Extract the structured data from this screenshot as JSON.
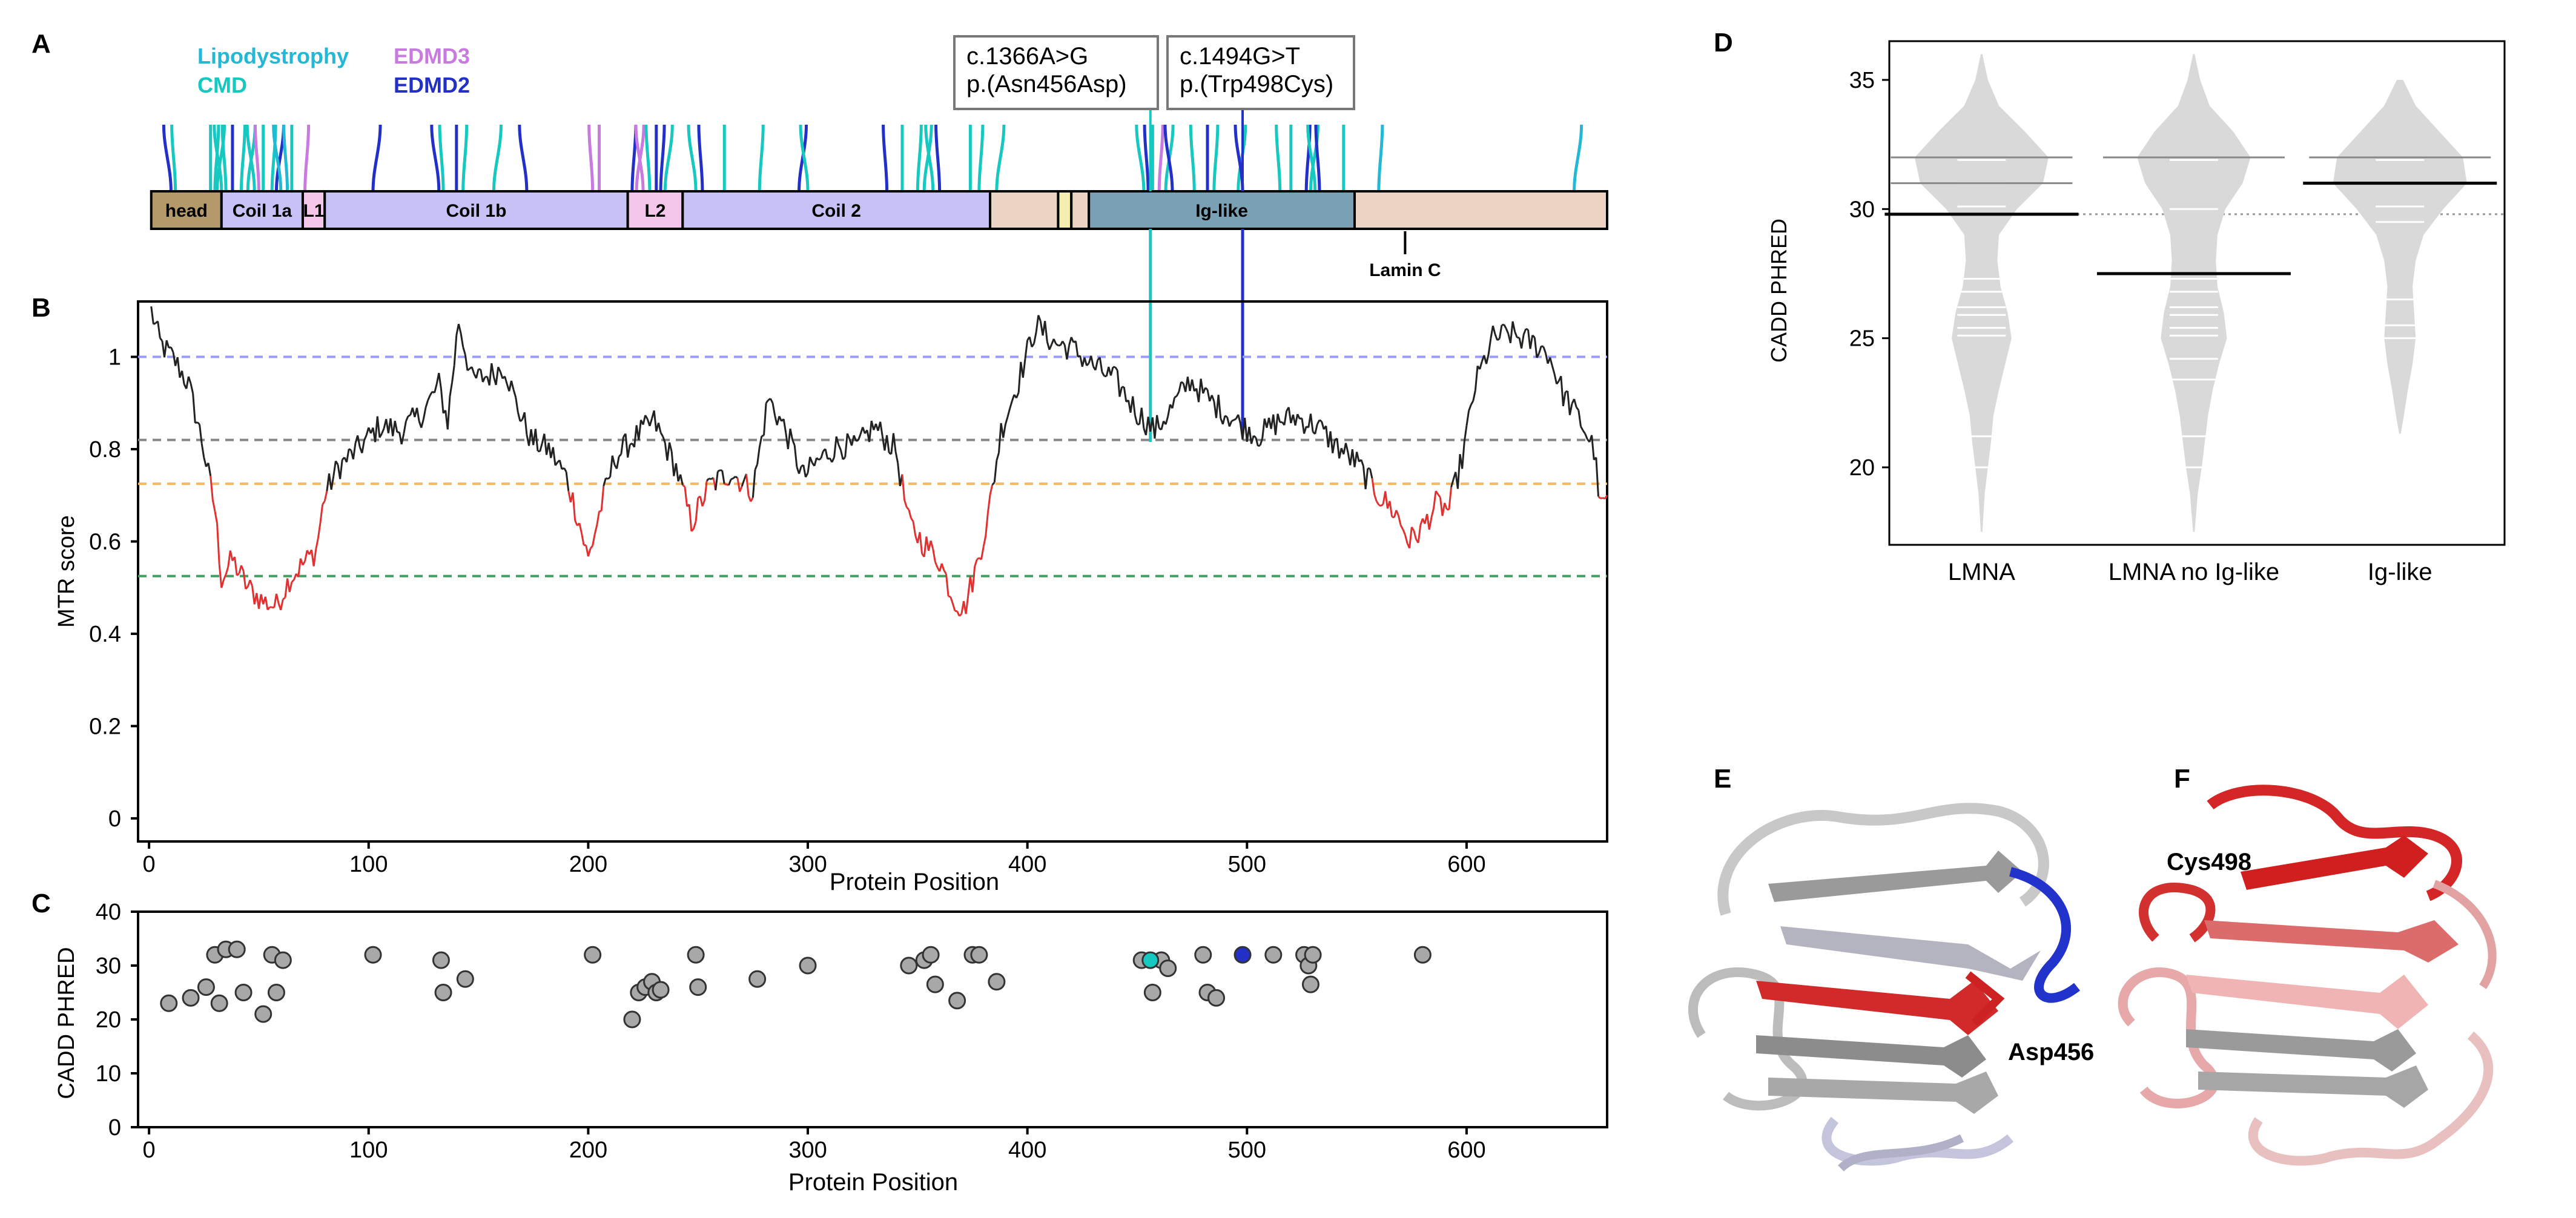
{
  "colors": {
    "lipodystrophy": "#22b8d6",
    "cmd": "#17c8c0",
    "edmd3": "#c87ae0",
    "edmd2": "#2230c8",
    "mtr_line": "#222222",
    "mtr_low": "#e03030",
    "dashed_blue": "#9a9aff",
    "dashed_gray": "#888888",
    "dashed_orange": "#f7b860",
    "dashed_green": "#40a060",
    "scatter_gray": "#a8a8a8",
    "violin": "#d9d9d9",
    "domain_head": "#b49a6a",
    "domain_coil": "#c7c2f5",
    "domain_linker": "#f3c6ea",
    "domain_tail": "#ebd4c4",
    "domain_ig": "#7aa0b6",
    "domain_small": "#f3edb0"
  },
  "panel_labels": {
    "a": "A",
    "b": "B",
    "c": "C",
    "d": "D",
    "e": "E",
    "f": "F"
  },
  "legend": {
    "lipodystrophy": "Lipodystrophy",
    "cmd": "CMD",
    "edmd3": "EDMD3",
    "edmd2": "EDMD2"
  },
  "annotations": {
    "var1_line1": "c.1366A>G",
    "var1_line2": "p.(Asn456Asp)",
    "var2_line1": "c.1494G>T",
    "var2_line2": "p.(Trp498Cys)"
  },
  "domains": [
    {
      "label": "head",
      "start": 1,
      "end": 33,
      "kind": "head"
    },
    {
      "label": "Coil 1a",
      "start": 33,
      "end": 70,
      "kind": "coil"
    },
    {
      "label": "L1",
      "start": 70,
      "end": 80,
      "kind": "linker"
    },
    {
      "label": "Coil 1b",
      "start": 80,
      "end": 218,
      "kind": "coil"
    },
    {
      "label": "L2",
      "start": 218,
      "end": 243,
      "kind": "linker"
    },
    {
      "label": "Coil 2",
      "start": 243,
      "end": 383,
      "kind": "coil"
    },
    {
      "label": "",
      "start": 383,
      "end": 414,
      "kind": "tail"
    },
    {
      "label": "",
      "start": 414,
      "end": 420,
      "kind": "small"
    },
    {
      "label": "",
      "start": 420,
      "end": 428,
      "kind": "tail"
    },
    {
      "label": "Ig-like",
      "start": 428,
      "end": 549,
      "kind": "ig"
    },
    {
      "label": "",
      "start": 549,
      "end": 664,
      "kind": "tail"
    }
  ],
  "lamin_c_label": "Lamin C",
  "lamin_c_position": 572,
  "variant_ticks": [
    {
      "pos": 10,
      "d": "edmd2"
    },
    {
      "pos": 12,
      "d": "cmd"
    },
    {
      "pos": 28,
      "d": "cmd"
    },
    {
      "pos": 30,
      "d": "cmd"
    },
    {
      "pos": 31,
      "d": "cmd"
    },
    {
      "pos": 33,
      "d": "cmd"
    },
    {
      "pos": 35,
      "d": "cmd"
    },
    {
      "pos": 38,
      "d": "edmd2"
    },
    {
      "pos": 42,
      "d": "cmd"
    },
    {
      "pos": 45,
      "d": "cmd"
    },
    {
      "pos": 48,
      "d": "cmd"
    },
    {
      "pos": 50,
      "d": "edmd3"
    },
    {
      "pos": 52,
      "d": "cmd"
    },
    {
      "pos": 56,
      "d": "cmd"
    },
    {
      "pos": 58,
      "d": "edmd2"
    },
    {
      "pos": 60,
      "d": "lipodystrophy"
    },
    {
      "pos": 63,
      "d": "lipodystrophy"
    },
    {
      "pos": 65,
      "d": "cmd"
    },
    {
      "pos": 71,
      "d": "edmd3"
    },
    {
      "pos": 102,
      "d": "edmd2"
    },
    {
      "pos": 132,
      "d": "edmd2"
    },
    {
      "pos": 134,
      "d": "cmd"
    },
    {
      "pos": 140,
      "d": "edmd2"
    },
    {
      "pos": 143,
      "d": "cmd"
    },
    {
      "pos": 157,
      "d": "cmd"
    },
    {
      "pos": 172,
      "d": "edmd2"
    },
    {
      "pos": 202,
      "d": "edmd3"
    },
    {
      "pos": 205,
      "d": "edmd3"
    },
    {
      "pos": 220,
      "d": "edmd2"
    },
    {
      "pos": 222,
      "d": "edmd3"
    },
    {
      "pos": 225,
      "d": "edmd3"
    },
    {
      "pos": 228,
      "d": "cmd"
    },
    {
      "pos": 231,
      "d": "edmd2"
    },
    {
      "pos": 233,
      "d": "edmd2"
    },
    {
      "pos": 235,
      "d": "cmd"
    },
    {
      "pos": 249,
      "d": "cmd"
    },
    {
      "pos": 252,
      "d": "edmd2"
    },
    {
      "pos": 262,
      "d": "cmd"
    },
    {
      "pos": 278,
      "d": "cmd"
    },
    {
      "pos": 296,
      "d": "edmd2"
    },
    {
      "pos": 300,
      "d": "cmd"
    },
    {
      "pos": 336,
      "d": "edmd2"
    },
    {
      "pos": 343,
      "d": "cmd"
    },
    {
      "pos": 350,
      "d": "cmd"
    },
    {
      "pos": 353,
      "d": "cmd"
    },
    {
      "pos": 357,
      "d": "cmd"
    },
    {
      "pos": 360,
      "d": "edmd2"
    },
    {
      "pos": 374,
      "d": "cmd"
    },
    {
      "pos": 378,
      "d": "cmd"
    },
    {
      "pos": 386,
      "d": "cmd"
    },
    {
      "pos": 453,
      "d": "cmd"
    },
    {
      "pos": 455,
      "d": "edmd2"
    },
    {
      "pos": 457,
      "d": "cmd"
    },
    {
      "pos": 460,
      "d": "edmd3"
    },
    {
      "pos": 463,
      "d": "cmd"
    },
    {
      "pos": 466,
      "d": "edmd2"
    },
    {
      "pos": 476,
      "d": "cmd"
    },
    {
      "pos": 482,
      "d": "edmd2"
    },
    {
      "pos": 485,
      "d": "cmd"
    },
    {
      "pos": 496,
      "d": "cmd"
    },
    {
      "pos": 498,
      "d": "edmd2"
    },
    {
      "pos": 515,
      "d": "cmd"
    },
    {
      "pos": 520,
      "d": "cmd"
    },
    {
      "pos": 527,
      "d": "edmd2"
    },
    {
      "pos": 529,
      "d": "cmd"
    },
    {
      "pos": 531,
      "d": "cmd"
    },
    {
      "pos": 533,
      "d": "edmd2"
    },
    {
      "pos": 544,
      "d": "cmd"
    },
    {
      "pos": 560,
      "d": "lipodystrophy"
    },
    {
      "pos": 649,
      "d": "lipodystrophy"
    }
  ],
  "highlight_variants": [
    {
      "pos": 456,
      "d": "cmd"
    },
    {
      "pos": 498,
      "d": "edmd2"
    }
  ],
  "chart_data": [
    {
      "id": "B",
      "type": "line",
      "title": "",
      "xlabel": "Protein Position",
      "ylabel": "MTR score",
      "xlim": [
        -5,
        664
      ],
      "ylim": [
        -0.05,
        1.12
      ],
      "xticks": [
        "0",
        "100",
        "200",
        "300",
        "400",
        "500",
        "600"
      ],
      "yticks": [
        "0",
        "0.2",
        "0.4",
        "0.6",
        "0.8",
        "1"
      ],
      "reference_lines": [
        {
          "y": 1.0,
          "color": "dashed_blue"
        },
        {
          "y": 0.82,
          "color": "dashed_gray"
        },
        {
          "y": 0.725,
          "color": "dashed_orange"
        },
        {
          "y": 0.525,
          "color": "dashed_green"
        }
      ],
      "low_threshold": 0.725,
      "anchors": [
        [
          1,
          1.1
        ],
        [
          5,
          1.03
        ],
        [
          12,
          0.99
        ],
        [
          18,
          0.94
        ],
        [
          24,
          0.82
        ],
        [
          30,
          0.67
        ],
        [
          33,
          0.52
        ],
        [
          38,
          0.56
        ],
        [
          45,
          0.5
        ],
        [
          52,
          0.47
        ],
        [
          58,
          0.46
        ],
        [
          64,
          0.52
        ],
        [
          70,
          0.55
        ],
        [
          76,
          0.58
        ],
        [
          80,
          0.7
        ],
        [
          86,
          0.76
        ],
        [
          95,
          0.8
        ],
        [
          105,
          0.85
        ],
        [
          115,
          0.84
        ],
        [
          125,
          0.88
        ],
        [
          132,
          0.94
        ],
        [
          136,
          0.86
        ],
        [
          141,
          1.08
        ],
        [
          147,
          0.95
        ],
        [
          155,
          0.96
        ],
        [
          162,
          0.98
        ],
        [
          167,
          0.9
        ],
        [
          174,
          0.82
        ],
        [
          182,
          0.8
        ],
        [
          190,
          0.74
        ],
        [
          196,
          0.64
        ],
        [
          200,
          0.56
        ],
        [
          205,
          0.66
        ],
        [
          212,
          0.78
        ],
        [
          220,
          0.82
        ],
        [
          230,
          0.86
        ],
        [
          240,
          0.76
        ],
        [
          247,
          0.64
        ],
        [
          255,
          0.72
        ],
        [
          265,
          0.75
        ],
        [
          275,
          0.71
        ],
        [
          282,
          0.91
        ],
        [
          290,
          0.84
        ],
        [
          298,
          0.74
        ],
        [
          306,
          0.78
        ],
        [
          314,
          0.81
        ],
        [
          322,
          0.8
        ],
        [
          330,
          0.85
        ],
        [
          340,
          0.8
        ],
        [
          346,
          0.64
        ],
        [
          352,
          0.6
        ],
        [
          360,
          0.56
        ],
        [
          366,
          0.48
        ],
        [
          371,
          0.45
        ],
        [
          377,
          0.55
        ],
        [
          382,
          0.65
        ],
        [
          388,
          0.84
        ],
        [
          396,
          0.95
        ],
        [
          404,
          1.07
        ],
        [
          412,
          1.03
        ],
        [
          420,
          1.02
        ],
        [
          430,
          0.98
        ],
        [
          440,
          0.95
        ],
        [
          450,
          0.88
        ],
        [
          458,
          0.84
        ],
        [
          466,
          0.89
        ],
        [
          474,
          0.95
        ],
        [
          482,
          0.91
        ],
        [
          490,
          0.88
        ],
        [
          498,
          0.85
        ],
        [
          506,
          0.83
        ],
        [
          514,
          0.86
        ],
        [
          522,
          0.87
        ],
        [
          532,
          0.85
        ],
        [
          540,
          0.81
        ],
        [
          550,
          0.77
        ],
        [
          560,
          0.7
        ],
        [
          568,
          0.66
        ],
        [
          574,
          0.6
        ],
        [
          580,
          0.63
        ],
        [
          586,
          0.68
        ],
        [
          592,
          0.67
        ],
        [
          598,
          0.78
        ],
        [
          604,
          0.94
        ],
        [
          612,
          1.04
        ],
        [
          620,
          1.05
        ],
        [
          630,
          1.03
        ],
        [
          637,
          1.01
        ],
        [
          644,
          0.92
        ],
        [
          652,
          0.86
        ],
        [
          658,
          0.8
        ],
        [
          661,
          0.67
        ],
        [
          664,
          0.7
        ]
      ]
    },
    {
      "id": "C",
      "type": "scatter",
      "title": "",
      "xlabel": "Protein Position",
      "ylabel": "CADD PHRED",
      "xlim": [
        -5,
        664
      ],
      "ylim": [
        0,
        40
      ],
      "xticks": [
        "0",
        "100",
        "200",
        "300",
        "400",
        "500",
        "600"
      ],
      "yticks": [
        "0",
        "10",
        "20",
        "30",
        "40"
      ],
      "points": [
        [
          9,
          23
        ],
        [
          19,
          24
        ],
        [
          26,
          26
        ],
        [
          30,
          32
        ],
        [
          32,
          23
        ],
        [
          35,
          33
        ],
        [
          40,
          33
        ],
        [
          43,
          25
        ],
        [
          52,
          21
        ],
        [
          56,
          32
        ],
        [
          58,
          25
        ],
        [
          61,
          31
        ],
        [
          102,
          32
        ],
        [
          133,
          31
        ],
        [
          134,
          25
        ],
        [
          144,
          27.5
        ],
        [
          202,
          32
        ],
        [
          220,
          20
        ],
        [
          223,
          25
        ],
        [
          226,
          26
        ],
        [
          229,
          27
        ],
        [
          231,
          25
        ],
        [
          233,
          25.5
        ],
        [
          249,
          32
        ],
        [
          250,
          26
        ],
        [
          277,
          27.5
        ],
        [
          300,
          30
        ],
        [
          346,
          30
        ],
        [
          353,
          31
        ],
        [
          356,
          32
        ],
        [
          358,
          26.5
        ],
        [
          368,
          23.5
        ],
        [
          375,
          32
        ],
        [
          378,
          32
        ],
        [
          386,
          27
        ],
        [
          452,
          31
        ],
        [
          457,
          25
        ],
        [
          461,
          31
        ],
        [
          464,
          29.5
        ],
        [
          480,
          32
        ],
        [
          482,
          25
        ],
        [
          486,
          24
        ],
        [
          512,
          32
        ],
        [
          526,
          32
        ],
        [
          528,
          30
        ],
        [
          529,
          26.5
        ],
        [
          530,
          32
        ],
        [
          580,
          32
        ]
      ],
      "highlight_points": [
        [
          456,
          31,
          "cmd"
        ],
        [
          498,
          32,
          "edmd2"
        ]
      ]
    },
    {
      "id": "D",
      "type": "violin",
      "title": "",
      "xlabel": "",
      "ylabel": "CADD PHRED",
      "ylim": [
        17,
        36.5
      ],
      "yticks": [
        "20",
        "25",
        "30",
        "35"
      ],
      "categories": [
        "LMNA",
        "LMNA no Ig-like",
        "Ig-like"
      ],
      "medians": [
        29.8,
        27.5,
        31.0
      ],
      "overall_median": 29.8,
      "widths": [
        [
          [
            17.5,
            0.01
          ],
          [
            19,
            0.04
          ],
          [
            20,
            0.08
          ],
          [
            21,
            0.12
          ],
          [
            22,
            0.15
          ],
          [
            23,
            0.22
          ],
          [
            24,
            0.3
          ],
          [
            25,
            0.38
          ],
          [
            26,
            0.33
          ],
          [
            27,
            0.24
          ],
          [
            28,
            0.2
          ],
          [
            29,
            0.22
          ],
          [
            30,
            0.45
          ],
          [
            31,
            0.78
          ],
          [
            32,
            0.85
          ],
          [
            33,
            0.55
          ],
          [
            34,
            0.22
          ],
          [
            35,
            0.08
          ],
          [
            36,
            0.01
          ]
        ],
        [
          [
            17.5,
            0.01
          ],
          [
            19,
            0.05
          ],
          [
            20,
            0.1
          ],
          [
            21,
            0.14
          ],
          [
            22,
            0.18
          ],
          [
            23,
            0.24
          ],
          [
            24,
            0.32
          ],
          [
            25,
            0.42
          ],
          [
            26,
            0.38
          ],
          [
            27,
            0.3
          ],
          [
            28,
            0.28
          ],
          [
            29,
            0.3
          ],
          [
            30,
            0.4
          ],
          [
            31,
            0.62
          ],
          [
            32,
            0.72
          ],
          [
            33,
            0.5
          ],
          [
            34,
            0.2
          ],
          [
            35,
            0.08
          ],
          [
            36,
            0.01
          ]
        ],
        [
          [
            21.3,
            0.01
          ],
          [
            22,
            0.05
          ],
          [
            23,
            0.1
          ],
          [
            24,
            0.16
          ],
          [
            25,
            0.2
          ],
          [
            26,
            0.18
          ],
          [
            27,
            0.16
          ],
          [
            28,
            0.2
          ],
          [
            29,
            0.3
          ],
          [
            30,
            0.55
          ],
          [
            31,
            0.85
          ],
          [
            32,
            0.8
          ],
          [
            33,
            0.5
          ],
          [
            34,
            0.2
          ],
          [
            35,
            0.04
          ]
        ]
      ],
      "points": [
        [
          20,
          21.2,
          25.1,
          25.4,
          25.9,
          26.2,
          26.8,
          27.3,
          30.1,
          31,
          31,
          31.9,
          32,
          32
        ],
        [
          20,
          21.2,
          23.4,
          24.2,
          25.1,
          25.4,
          25.9,
          26.2,
          26.8,
          27.3,
          30,
          31.9
        ],
        [
          25,
          25.5,
          26.5,
          29.5,
          30.1,
          31,
          31.9,
          32
        ]
      ]
    }
  ],
  "structures": {
    "e_label": "Asp456",
    "f_label": "Cys498"
  }
}
